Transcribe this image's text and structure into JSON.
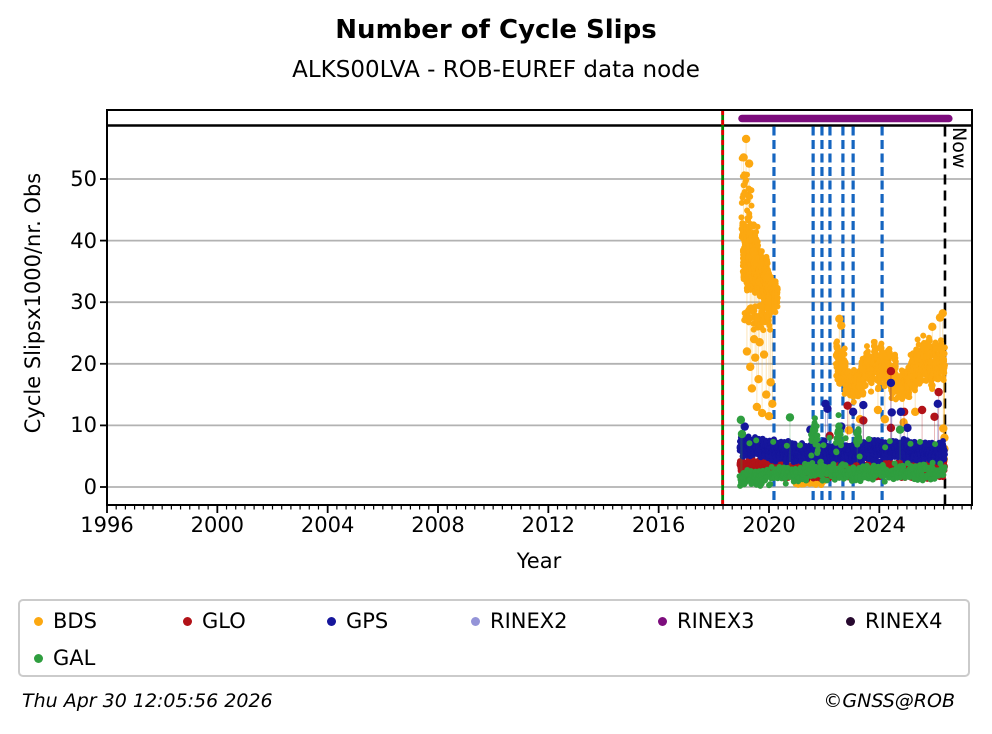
{
  "figure": {
    "title": "Number of Cycle Slips",
    "subtitle": "ALKS00LVA - ROB-EUREF data node",
    "footer_left": "Thu Apr 30 12:05:56 2026",
    "footer_right": "©GNSS@ROB"
  },
  "chart_data": {
    "type": "scatter",
    "title": "Number of Cycle Slips",
    "subtitle": "ALKS00LVA - ROB-EUREF data node",
    "xlabel": "Year",
    "ylabel": "Cycle Slipsx1000/nr. Obs",
    "xlim": [
      1996,
      2027.36
    ],
    "ylim": [
      0,
      61.2
    ],
    "x_ticks": [
      1996,
      2000,
      2004,
      2008,
      2012,
      2016,
      2020,
      2024
    ],
    "y_ticks": [
      0,
      10,
      20,
      30,
      40,
      50
    ],
    "grid": "horizontal-only",
    "grid_color": "#b2b2b2",
    "header_separator_value": 58.8,
    "now_marker": {
      "x": 2026.38,
      "label": "Now",
      "color": "#000000",
      "style": "dashed"
    },
    "station_line": {
      "x": 2018.32,
      "solid_color": "#008000",
      "dash_color": "#e60000"
    },
    "event_lines": {
      "color": "#1565c0",
      "style": "dashed",
      "x": [
        2020.18,
        2021.6,
        2021.92,
        2022.21,
        2022.68,
        2023.05,
        2024.1
      ]
    },
    "rinex3_bar": {
      "x0": 2019.02,
      "x1": 2026.52,
      "color": "#7d0d7d"
    },
    "legend": {
      "position": "below",
      "entries": [
        {
          "label": "BDS",
          "color": "#fca811"
        },
        {
          "label": "GLO",
          "color": "#b21218"
        },
        {
          "label": "GPS",
          "color": "#16169c"
        },
        {
          "label": "RINEX2",
          "color": "#9494d8"
        },
        {
          "label": "RINEX3",
          "color": "#7d0d7d"
        },
        {
          "label": "RINEX4",
          "color": "#27092f"
        },
        {
          "label": "GAL",
          "color": "#2f9e3f"
        }
      ]
    },
    "series": [
      {
        "name": "BDS",
        "color": "#fca811",
        "stem": [
          [
            2018.9,
            34
          ],
          [
            2020.4,
            31
          ],
          [
            2020.95,
            0.8
          ],
          [
            2021.98,
            0.8
          ],
          [
            2022.4,
            18
          ],
          [
            2026.4,
            19
          ]
        ],
        "segments": [
          {
            "x0": 2019.0,
            "x1": 2019.38,
            "n": 26,
            "center": [
              [
                2019.0,
                49.5
              ],
              [
                2019.38,
                46
              ]
            ],
            "spread": 4.5,
            "lines": 1
          },
          {
            "x0": 2019.0,
            "x1": 2019.6,
            "n": 110,
            "center": [
              [
                2019.0,
                41
              ],
              [
                2019.6,
                39
              ]
            ],
            "spread": 4.0,
            "lines": 1
          },
          {
            "x0": 2019.05,
            "x1": 2020.0,
            "n": 420,
            "center": [
              [
                2019.05,
                37
              ],
              [
                2019.4,
                35
              ],
              [
                2019.8,
                34.5
              ],
              [
                2020.0,
                33.5
              ]
            ],
            "spread": 3.6,
            "wamp": 1.2,
            "wfreq": 40,
            "lines": 1
          },
          {
            "x0": 2019.85,
            "x1": 2020.32,
            "n": 130,
            "center": [
              [
                2019.85,
                32
              ],
              [
                2020.32,
                30.5
              ]
            ],
            "spread": 3.2,
            "lines": 1
          },
          {
            "x0": 2019.1,
            "x1": 2020.05,
            "n": 70,
            "center": [
              [
                2019.1,
                28
              ],
              [
                2020.05,
                27
              ]
            ],
            "spread": 2.6,
            "lines": 1
          },
          {
            "x0": 2020.95,
            "x1": 2021.98,
            "n": 70,
            "center": [
              [
                2020.95,
                0.8
              ],
              [
                2021.98,
                0.7
              ]
            ],
            "spread": 0.5
          },
          {
            "x0": 2022.42,
            "x1": 2022.78,
            "n": 90,
            "center": [
              [
                2022.42,
                20.5
              ],
              [
                2022.78,
                19.5
              ]
            ],
            "spread": 4.2,
            "lines": 1
          },
          {
            "x0": 2022.72,
            "x1": 2023.4,
            "n": 170,
            "center": [
              [
                2022.72,
                17.5
              ],
              [
                2023.05,
                16.2
              ],
              [
                2023.4,
                17.5
              ]
            ],
            "spread": 2.8,
            "lines": 1
          },
          {
            "x0": 2023.35,
            "x1": 2024.6,
            "n": 300,
            "center": [
              [
                2023.35,
                18.5
              ],
              [
                2023.8,
                20
              ],
              [
                2024.2,
                19.5
              ],
              [
                2024.6,
                18
              ]
            ],
            "spread": 3.2,
            "wamp": 1.5,
            "wfreq": 25,
            "lines": 1
          },
          {
            "x0": 2024.55,
            "x1": 2025.1,
            "n": 120,
            "center": [
              [
                2024.55,
                16.5
              ],
              [
                2025.1,
                16.8
              ]
            ],
            "spread": 2.6,
            "lines": 1
          },
          {
            "x0": 2025.05,
            "x1": 2026.38,
            "n": 330,
            "center": [
              [
                2025.05,
                18.5
              ],
              [
                2025.6,
                20.5
              ],
              [
                2026.0,
                19.5
              ],
              [
                2026.38,
                21.5
              ]
            ],
            "spread": 3.2,
            "wamp": 1.5,
            "wfreq": 30,
            "lines": 1
          }
        ],
        "outliers": [
          [
            2019.17,
            56.5
          ],
          [
            2019.08,
            53.5
          ],
          [
            2019.28,
            52.5
          ],
          [
            2019.2,
            22
          ],
          [
            2019.32,
            19.5
          ],
          [
            2019.38,
            16
          ],
          [
            2019.5,
            21
          ],
          [
            2019.56,
            13
          ],
          [
            2019.62,
            17.5
          ],
          [
            2019.75,
            12
          ],
          [
            2019.82,
            21.5
          ],
          [
            2019.9,
            15
          ],
          [
            2020.0,
            11.5
          ],
          [
            2020.06,
            17
          ],
          [
            2019.46,
            24
          ],
          [
            2019.66,
            23.5
          ],
          [
            2020.12,
            13.5
          ],
          [
            2022.55,
            27.3
          ],
          [
            2022.62,
            26.2
          ],
          [
            2022.9,
            9.2
          ],
          [
            2023.3,
            11
          ],
          [
            2023.95,
            12.5
          ],
          [
            2024.2,
            11
          ],
          [
            2024.88,
            10.5
          ],
          [
            2025.3,
            12.2
          ],
          [
            2026.2,
            27.5
          ],
          [
            2026.3,
            28.2
          ],
          [
            2025.92,
            26
          ],
          [
            2026.32,
            9.5
          ],
          [
            2026.36,
            8
          ],
          [
            2026.34,
            4.5
          ],
          [
            2026.36,
            6.2
          ]
        ]
      },
      {
        "name": "GLO",
        "color": "#b21218",
        "stem": [
          [
            2018.9,
            3.2
          ],
          [
            2026.4,
            2.8
          ]
        ],
        "segments": [
          {
            "x0": 2018.93,
            "x1": 2026.38,
            "n": 1500,
            "center": [
              [
                2018.93,
                3.4
              ],
              [
                2019.6,
                3.1
              ],
              [
                2020.5,
                2.9
              ],
              [
                2021.5,
                2.5
              ],
              [
                2022.3,
                2.9
              ],
              [
                2023.2,
                2.7
              ],
              [
                2024.2,
                2.9
              ],
              [
                2025.2,
                2.7
              ],
              [
                2026.38,
                2.8
              ]
            ],
            "spread": 1.15,
            "wamp": 0.5,
            "wfreq": 55
          }
        ],
        "outliers": [
          [
            2022.85,
            13.2
          ],
          [
            2023.42,
            10.8
          ],
          [
            2024.42,
            18.8
          ],
          [
            2024.42,
            9.6
          ],
          [
            2024.9,
            12.2
          ],
          [
            2026.0,
            11.4
          ],
          [
            2026.15,
            15.4
          ],
          [
            2025.55,
            12.5
          ],
          [
            2022.2,
            8.3
          ]
        ]
      },
      {
        "name": "GPS",
        "color": "#16169c",
        "stem": [
          [
            2018.9,
            6.5
          ],
          [
            2026.4,
            5.7
          ]
        ],
        "segments": [
          {
            "x0": 2018.93,
            "x1": 2026.38,
            "n": 1600,
            "center": [
              [
                2018.93,
                6.8
              ],
              [
                2019.5,
                6.3
              ],
              [
                2020.3,
                6.0
              ],
              [
                2021.1,
                5.4
              ],
              [
                2021.9,
                5.8
              ],
              [
                2022.6,
                5.5
              ],
              [
                2023.3,
                5.6
              ],
              [
                2024.0,
                6.0
              ],
              [
                2024.7,
                6.1
              ],
              [
                2025.4,
                5.7
              ],
              [
                2026.38,
                5.6
              ]
            ],
            "spread": 1.45,
            "wamp": 0.7,
            "wfreq": 48
          }
        ],
        "outliers": [
          [
            2019.12,
            9.8
          ],
          [
            2021.5,
            9.3
          ],
          [
            2022.05,
            13.5
          ],
          [
            2022.12,
            12.7
          ],
          [
            2023.05,
            12.2
          ],
          [
            2023.42,
            13.3
          ],
          [
            2024.42,
            16.9
          ],
          [
            2024.45,
            12.1
          ],
          [
            2024.78,
            12.2
          ],
          [
            2026.12,
            13.5
          ],
          [
            2025.02,
            9.6
          ],
          [
            2022.62,
            9.8
          ]
        ]
      },
      {
        "name": "GAL",
        "color": "#2f9e3f",
        "stem": [
          [
            2018.9,
            2.0
          ],
          [
            2026.4,
            2.5
          ]
        ],
        "segments": [
          {
            "x0": 2018.93,
            "x1": 2026.38,
            "n": 450,
            "center": [
              [
                2018.93,
                1.6
              ],
              [
                2019.5,
                1.2
              ],
              [
                2020.2,
                2.0
              ],
              [
                2021.0,
                2.4
              ],
              [
                2022.0,
                2.6
              ],
              [
                2023.0,
                2.3
              ],
              [
                2024.0,
                2.6
              ],
              [
                2025.0,
                2.4
              ],
              [
                2026.38,
                2.6
              ]
            ],
            "spread": 1.25,
            "wamp": 0.6,
            "wfreq": 42
          },
          {
            "x0": 2021.52,
            "x1": 2021.78,
            "n": 35,
            "center": [
              [
                2021.52,
                6.5
              ],
              [
                2021.64,
                10
              ],
              [
                2021.78,
                6.5
              ]
            ],
            "spread": 2.5
          },
          {
            "x0": 2022.42,
            "x1": 2022.62,
            "n": 22,
            "center": [
              [
                2022.42,
                7
              ],
              [
                2022.52,
                9.5
              ],
              [
                2022.62,
                7.5
              ]
            ],
            "spread": 2.6
          },
          {
            "x0": 2023.15,
            "x1": 2023.3,
            "n": 14,
            "center": [
              [
                2023.15,
                6
              ],
              [
                2023.22,
                8.5
              ],
              [
                2023.3,
                6
              ]
            ],
            "spread": 1.8
          },
          {
            "x0": 2019.0,
            "x1": 2026.38,
            "n": 14,
            "center": [
              [
                2019.0,
                7
              ],
              [
                2026.38,
                7.5
              ]
            ],
            "spread": 1.0
          }
        ],
        "outliers": [
          [
            2018.98,
            10.9
          ],
          [
            2020.76,
            11.3
          ],
          [
            2024.75,
            9.3
          ],
          [
            2019.02,
            8.6
          ],
          [
            2023.2,
            8.8
          ]
        ]
      }
    ]
  }
}
